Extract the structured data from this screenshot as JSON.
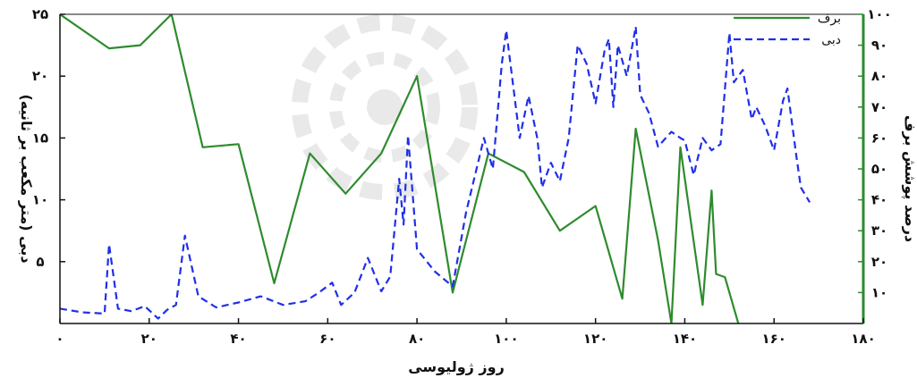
{
  "chart_data": {
    "type": "line",
    "xlabel": "روز ژولیوسی",
    "ylabel_left": "دبی (متر مکعب بر ثانیه)",
    "ylabel_right": "درصد پوشش برف",
    "xlim": [
      0,
      180
    ],
    "ylim_left": [
      0,
      25
    ],
    "ylim_right": [
      0,
      100
    ],
    "grid": false,
    "legend_position": "top-right",
    "x_ticks": [
      {
        "value": 0,
        "label": "۰"
      },
      {
        "value": 20,
        "label": "۲۰"
      },
      {
        "value": 40,
        "label": "۴۰"
      },
      {
        "value": 60,
        "label": "۶۰"
      },
      {
        "value": 80,
        "label": "۸۰"
      },
      {
        "value": 100,
        "label": "۱۰۰"
      },
      {
        "value": 120,
        "label": "۱۲۰"
      },
      {
        "value": 140,
        "label": "۱۴۰"
      },
      {
        "value": 160,
        "label": "۱۶۰"
      },
      {
        "value": 180,
        "label": "۱۸۰"
      }
    ],
    "y_left_ticks": [
      {
        "value": 5,
        "label": "۵"
      },
      {
        "value": 10,
        "label": "۱۰"
      },
      {
        "value": 15,
        "label": "۱۵"
      },
      {
        "value": 20,
        "label": "۲۰"
      },
      {
        "value": 25,
        "label": "۲۵"
      }
    ],
    "y_right_ticks": [
      {
        "value": 10,
        "label": "۱۰"
      },
      {
        "value": 20,
        "label": "۲۰"
      },
      {
        "value": 30,
        "label": "۳۰"
      },
      {
        "value": 40,
        "label": "۴۰"
      },
      {
        "value": 50,
        "label": "۵۰"
      },
      {
        "value": 60,
        "label": "۶۰"
      },
      {
        "value": 70,
        "label": "۷۰"
      },
      {
        "value": 80,
        "label": "۸۰"
      },
      {
        "value": 90,
        "label": "۹۰"
      },
      {
        "value": 100,
        "label": "۱۰۰"
      }
    ],
    "series": [
      {
        "name": "برف",
        "axis": "right",
        "color": "#2e8b2e",
        "dash": "solid",
        "x": [
          0,
          11,
          18,
          25,
          32,
          40,
          48,
          56,
          64,
          72,
          80,
          88,
          96,
          104,
          112,
          120,
          126,
          129,
          134,
          137,
          139,
          144,
          146,
          147,
          149,
          151,
          152
        ],
        "y": [
          100,
          89,
          90,
          100,
          57,
          58,
          13,
          55,
          42,
          55,
          80,
          10,
          55,
          49,
          30,
          38,
          8,
          63,
          27,
          0,
          57,
          6,
          43,
          16,
          15,
          5,
          0
        ]
      },
      {
        "name": "دبی",
        "axis": "left",
        "color": "#1f2fe8",
        "dash": "dashed",
        "x": [
          0,
          5,
          10,
          11,
          13,
          16,
          19,
          22,
          24,
          26,
          28,
          31,
          35,
          40,
          45,
          50,
          55,
          58,
          61,
          63,
          66,
          69,
          72,
          74,
          76,
          77,
          78,
          80,
          84,
          88,
          91,
          94,
          95,
          97,
          99,
          100,
          103,
          105,
          107,
          108,
          110,
          112,
          114,
          116,
          118,
          120,
          122,
          123,
          124,
          125,
          127,
          129,
          130,
          132,
          134,
          137,
          139,
          140,
          142,
          144,
          146,
          148,
          150,
          151,
          153,
          155,
          156,
          158,
          160,
          162,
          163,
          165,
          166,
          168
        ],
        "y": [
          1.2,
          0.9,
          0.8,
          6.4,
          1.2,
          1.0,
          1.4,
          0.4,
          1.1,
          1.5,
          7.1,
          2.2,
          1.3,
          1.7,
          2.2,
          1.5,
          1.8,
          2.5,
          3.3,
          1.5,
          2.5,
          5.3,
          2.6,
          3.8,
          11.7,
          8.0,
          15.2,
          6.0,
          4.2,
          3.0,
          9.0,
          13.5,
          15.0,
          12.5,
          21.0,
          23.7,
          15.0,
          18.4,
          14.9,
          11.0,
          13.0,
          11.5,
          15.0,
          22.5,
          21.0,
          17.8,
          22.0,
          23.0,
          17.5,
          22.5,
          20.0,
          24.0,
          18.5,
          17.0,
          14.3,
          15.5,
          15.0,
          14.8,
          12.0,
          15.0,
          14.0,
          14.5,
          23.5,
          19.5,
          20.5,
          16.5,
          17.5,
          16.0,
          14.0,
          18.0,
          19.0,
          13.5,
          11.0,
          9.8
        ]
      }
    ]
  }
}
